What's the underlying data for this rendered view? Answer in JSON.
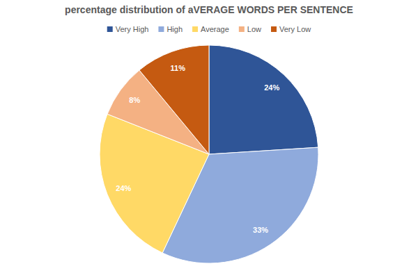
{
  "chart_data": {
    "type": "pie",
    "title": "percentage distribution of aVERAGE WORDS PER SENTENCE",
    "categories": [
      "Very High",
      "High",
      "Average",
      "Low",
      "Very Low"
    ],
    "values": [
      24,
      33,
      24,
      8,
      11
    ],
    "value_labels": [
      "24%",
      "33%",
      "24%",
      "8%",
      "11%"
    ],
    "colors": [
      "#2f5597",
      "#8faadc",
      "#ffd966",
      "#f4b183",
      "#c55a11"
    ],
    "data_labels": true,
    "legend": "top"
  }
}
